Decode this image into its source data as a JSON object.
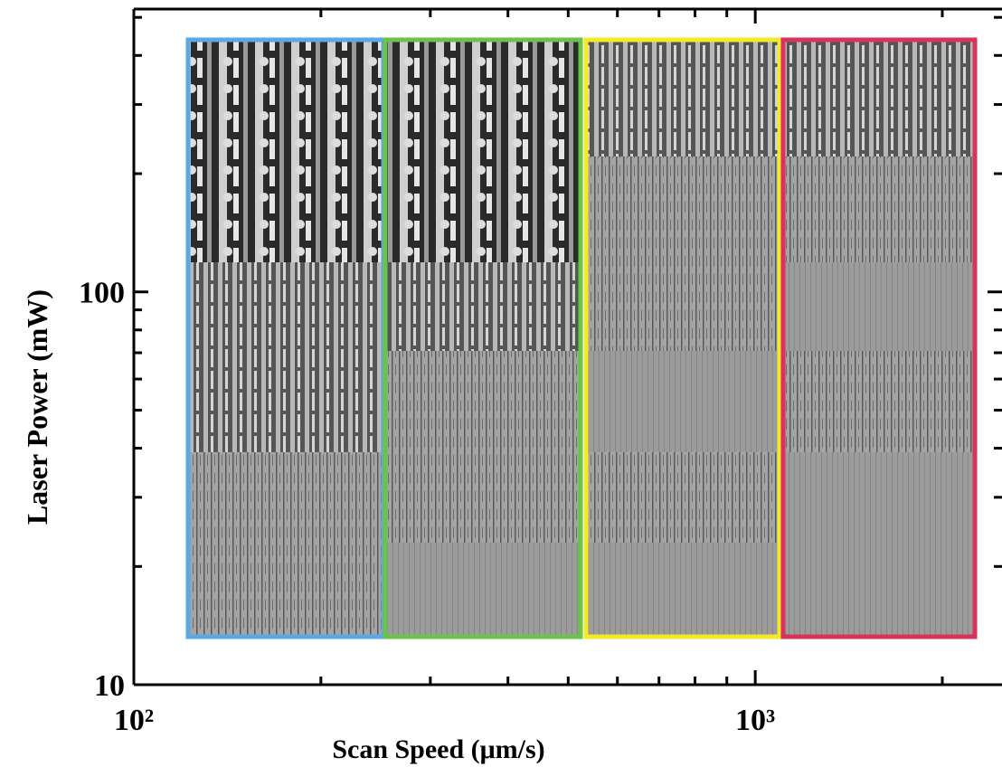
{
  "chart_data": {
    "type": "loglog",
    "xlabel": "Scan Speed (μm/s)",
    "ylabel": "Laser Power (mW)",
    "xlim": [
      100,
      2495
    ],
    "ylim": [
      10,
      525
    ],
    "xticks": [
      {
        "value": 100,
        "label": "10²"
      },
      {
        "value": 1000,
        "label": "10³"
      }
    ],
    "yticks": [
      10,
      100
    ],
    "xminorticks": [
      200,
      300,
      400,
      500,
      600,
      700,
      800,
      900,
      2000
    ],
    "yminorticks": [
      20,
      30,
      40,
      50,
      60,
      70,
      80,
      90,
      200,
      300,
      400,
      500
    ],
    "xscale": "log",
    "yscale": "log"
  }
}
